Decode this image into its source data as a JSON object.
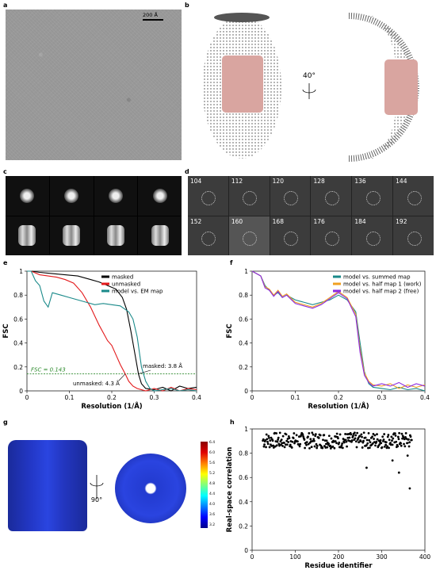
{
  "panels": {
    "a": {
      "label": "a",
      "scalebar": "200 Å"
    },
    "b": {
      "label": "b",
      "rotation": "40°"
    },
    "c": {
      "label": "c"
    },
    "d": {
      "label": "d",
      "projections": [
        "104",
        "112",
        "120",
        "128",
        "136",
        "144",
        "152",
        "160",
        "168",
        "176",
        "184",
        "192"
      ]
    },
    "e": {
      "label": "e"
    },
    "f": {
      "label": "f"
    },
    "g": {
      "label": "g",
      "rotation": "90°",
      "colorbar_ticks": [
        "6.4",
        "6.0",
        "5.6",
        "5.2",
        "4.8",
        "4.4",
        "4.0",
        "3.6",
        "3.2"
      ]
    },
    "h": {
      "label": "h"
    }
  },
  "chart_data": [
    {
      "type": "line",
      "panel": "e",
      "xlabel": "Resolution (1/Å)",
      "ylabel": "FSC",
      "xlim": [
        0,
        0.4
      ],
      "ylim": [
        0,
        1
      ],
      "xticks": [
        "0",
        "0.1",
        "0.2",
        "0.3",
        "0.4"
      ],
      "yticks": [
        "0",
        "0.2",
        "0.4",
        "0.6",
        "0.8",
        "1"
      ],
      "threshold": {
        "y": 0.143,
        "label": "FSC = 0.143",
        "color": "#2e8b2e"
      },
      "annotations": [
        {
          "text": "masked: 3.8 Å",
          "x": 0.263
        },
        {
          "text": "unmasked: 4.3 Å",
          "x": 0.232
        }
      ],
      "series": [
        {
          "name": "masked",
          "color": "#000000",
          "x": [
            0,
            0.01,
            0.03,
            0.06,
            0.09,
            0.12,
            0.15,
            0.17,
            0.19,
            0.21,
            0.225,
            0.235,
            0.245,
            0.255,
            0.263,
            0.27,
            0.28,
            0.3,
            0.32,
            0.34,
            0.36,
            0.38,
            0.4
          ],
          "y": [
            1,
            1,
            0.99,
            0.98,
            0.97,
            0.96,
            0.93,
            0.91,
            0.88,
            0.85,
            0.78,
            0.68,
            0.5,
            0.3,
            0.14,
            0.06,
            0.02,
            0.01,
            0.03,
            0.0,
            0.04,
            0.02,
            0.03
          ]
        },
        {
          "name": "unmasked",
          "color": "#e31a1c",
          "x": [
            0,
            0.01,
            0.03,
            0.05,
            0.07,
            0.09,
            0.11,
            0.13,
            0.15,
            0.17,
            0.19,
            0.2,
            0.21,
            0.22,
            0.232,
            0.24,
            0.25,
            0.26,
            0.28,
            0.3,
            0.32,
            0.34,
            0.36,
            0.38,
            0.4
          ],
          "y": [
            1,
            1,
            0.97,
            0.96,
            0.95,
            0.93,
            0.9,
            0.82,
            0.7,
            0.55,
            0.42,
            0.38,
            0.3,
            0.22,
            0.14,
            0.08,
            0.04,
            0.02,
            0.0,
            0.02,
            0.0,
            0.03,
            0.0,
            0.02,
            0.01
          ]
        },
        {
          "name": "model vs. EM map",
          "color": "#1a8a8a",
          "x": [
            0,
            0.01,
            0.02,
            0.03,
            0.04,
            0.05,
            0.06,
            0.08,
            0.1,
            0.12,
            0.14,
            0.16,
            0.18,
            0.2,
            0.22,
            0.24,
            0.25,
            0.26,
            0.27,
            0.28,
            0.29,
            0.3,
            0.32,
            0.34,
            0.36,
            0.38,
            0.4
          ],
          "y": [
            1,
            1,
            0.92,
            0.88,
            0.75,
            0.7,
            0.82,
            0.8,
            0.78,
            0.76,
            0.74,
            0.72,
            0.73,
            0.72,
            0.71,
            0.66,
            0.6,
            0.45,
            0.2,
            0.08,
            0.02,
            0.0,
            0.01,
            0.02,
            0.0,
            0.01,
            0.0
          ]
        }
      ]
    },
    {
      "type": "line",
      "panel": "f",
      "xlabel": "Resolution (1/Å)",
      "ylabel": "FSC",
      "xlim": [
        0,
        0.4
      ],
      "ylim": [
        0,
        1
      ],
      "xticks": [
        "0",
        "0.1",
        "0.2",
        "0.3",
        "0.4"
      ],
      "yticks": [
        "0",
        "0.2",
        "0.4",
        "0.6",
        "0.8",
        "1"
      ],
      "series": [
        {
          "name": "model vs. summed map",
          "color": "#1a8a8a",
          "x": [
            0,
            0.01,
            0.02,
            0.03,
            0.04,
            0.05,
            0.06,
            0.07,
            0.08,
            0.1,
            0.12,
            0.14,
            0.16,
            0.18,
            0.2,
            0.22,
            0.24,
            0.25,
            0.26,
            0.27,
            0.28,
            0.3,
            0.32,
            0.34,
            0.36,
            0.38,
            0.4
          ],
          "y": [
            1,
            0.98,
            0.96,
            0.88,
            0.84,
            0.8,
            0.82,
            0.78,
            0.8,
            0.76,
            0.74,
            0.72,
            0.74,
            0.76,
            0.8,
            0.76,
            0.66,
            0.4,
            0.16,
            0.06,
            0.03,
            0.02,
            0.01,
            0.03,
            0.01,
            0.02,
            0.0
          ]
        },
        {
          "name": "model vs. half map 1 (work)",
          "color": "#f0a020",
          "x": [
            0,
            0.01,
            0.02,
            0.03,
            0.04,
            0.05,
            0.06,
            0.07,
            0.08,
            0.1,
            0.12,
            0.14,
            0.16,
            0.18,
            0.2,
            0.22,
            0.24,
            0.25,
            0.26,
            0.27,
            0.28,
            0.3,
            0.32,
            0.34,
            0.36,
            0.38,
            0.4
          ],
          "y": [
            1,
            0.98,
            0.96,
            0.87,
            0.85,
            0.8,
            0.84,
            0.79,
            0.81,
            0.74,
            0.72,
            0.7,
            0.73,
            0.78,
            0.83,
            0.78,
            0.64,
            0.35,
            0.15,
            0.08,
            0.05,
            0.04,
            0.06,
            0.02,
            0.05,
            0.03,
            0.05
          ]
        },
        {
          "name": "model vs. half map 2 (free)",
          "color": "#8b2be2",
          "x": [
            0,
            0.01,
            0.02,
            0.03,
            0.04,
            0.05,
            0.06,
            0.07,
            0.08,
            0.1,
            0.12,
            0.14,
            0.16,
            0.18,
            0.2,
            0.22,
            0.24,
            0.25,
            0.26,
            0.27,
            0.28,
            0.3,
            0.32,
            0.34,
            0.36,
            0.38,
            0.4
          ],
          "y": [
            1,
            0.98,
            0.96,
            0.86,
            0.84,
            0.79,
            0.83,
            0.78,
            0.8,
            0.73,
            0.71,
            0.69,
            0.72,
            0.77,
            0.82,
            0.77,
            0.62,
            0.32,
            0.13,
            0.07,
            0.04,
            0.06,
            0.04,
            0.07,
            0.03,
            0.06,
            0.04
          ]
        }
      ]
    },
    {
      "type": "scatter",
      "panel": "h",
      "xlabel": "Residue identifier",
      "ylabel": "Real-space correlation",
      "xlim": [
        0,
        400
      ],
      "ylim": [
        0,
        1
      ],
      "xticks": [
        "0",
        "100",
        "200",
        "300",
        "400"
      ],
      "yticks": [
        "0",
        "0.2",
        "0.4",
        "0.6",
        "0.8",
        "1"
      ],
      "outliers": [
        {
          "x": 265,
          "y": 0.68
        },
        {
          "x": 340,
          "y": 0.64
        },
        {
          "x": 365,
          "y": 0.51
        },
        {
          "x": 325,
          "y": 0.74
        },
        {
          "x": 360,
          "y": 0.78
        }
      ],
      "main_band": {
        "x_start": 25,
        "x_end": 370,
        "y_low": 0.84,
        "y_high": 0.97
      }
    }
  ]
}
